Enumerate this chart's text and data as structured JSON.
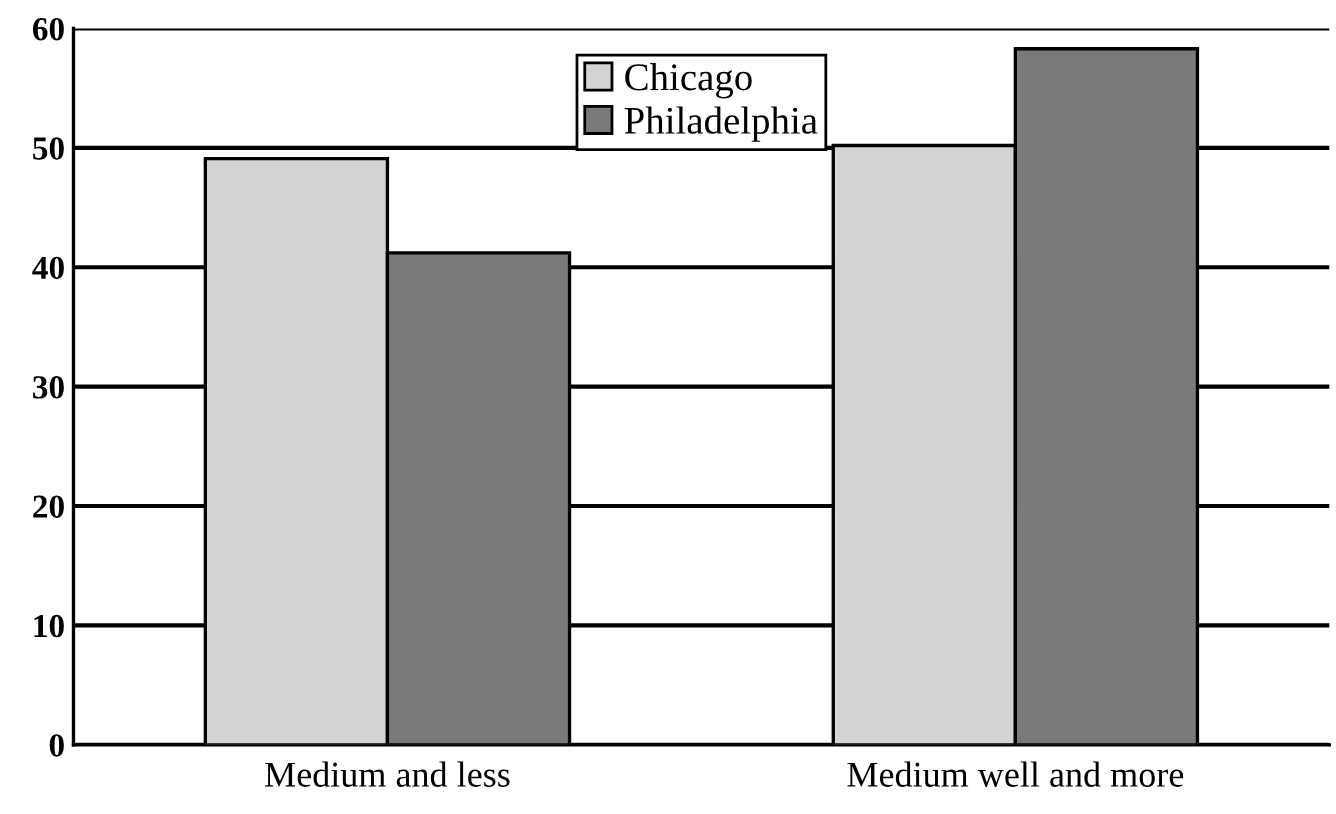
{
  "chart_data": {
    "type": "bar",
    "categories": [
      "Medium and less",
      "Medium well and more"
    ],
    "series": [
      {
        "name": "Chicago",
        "color": "#d4d4d4",
        "values": [
          49.1,
          50.2
        ]
      },
      {
        "name": "Philadelphia",
        "color": "#7a7a7a",
        "values": [
          41.2,
          58.3
        ]
      }
    ],
    "ylim": [
      0,
      60
    ],
    "yticks": [
      0,
      10,
      20,
      30,
      40,
      50,
      60
    ],
    "grid": "y",
    "legend": "top"
  }
}
